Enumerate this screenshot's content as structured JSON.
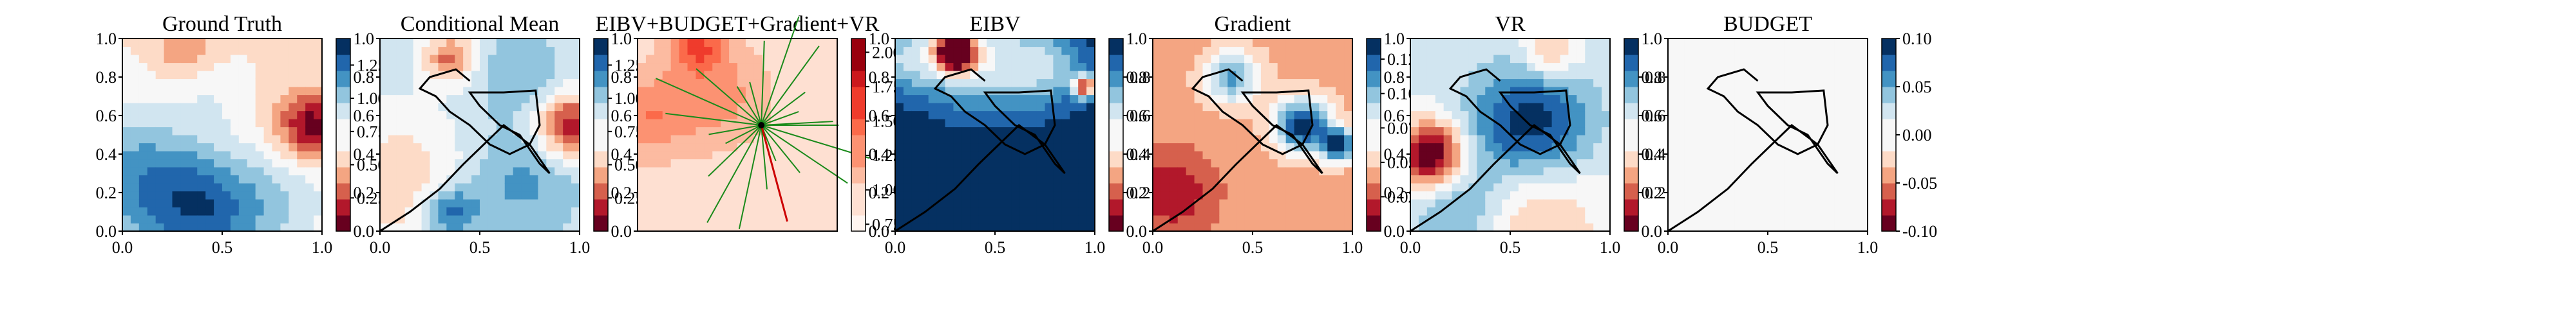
{
  "chart_data": [
    {
      "type": "heatmap",
      "title": "Ground Truth",
      "xlim": [
        0,
        1
      ],
      "ylim": [
        0,
        1
      ],
      "xticks": [
        "0.0",
        "0.5",
        "1.0"
      ],
      "yticks": [
        "0.0",
        "0.2",
        "0.4",
        "0.6",
        "0.8",
        "1.0"
      ],
      "colorbar": {
        "range": [
          0.0,
          1.45
        ],
        "ticks": [
          "0.25",
          "0.50",
          "0.75",
          "1.00",
          "1.25"
        ],
        "cmap": "RdBu"
      },
      "field": {
        "base": 0.65,
        "blobs": [
          {
            "x": 0.95,
            "y": 0.55,
            "s": 0.12,
            "a": -0.6
          },
          {
            "x": 0.3,
            "y": 0.95,
            "s": 0.1,
            "a": -0.25
          },
          {
            "x": 0.45,
            "y": 0.7,
            "s": 0.12,
            "a": 0.1
          },
          {
            "x": 0.4,
            "y": 0.1,
            "s": 0.22,
            "a": 0.55
          },
          {
            "x": 0.05,
            "y": 0.3,
            "s": 0.25,
            "a": 0.4
          },
          {
            "x": 0.8,
            "y": 0.15,
            "s": 0.2,
            "a": 0.2
          }
        ]
      },
      "path": []
    },
    {
      "type": "heatmap",
      "title": "Conditional Mean",
      "xlim": [
        0,
        1
      ],
      "ylim": [
        0,
        1
      ],
      "xticks": [
        "0.0",
        "0.5",
        "1.0"
      ],
      "yticks": [
        "0.0",
        "0.2",
        "0.4",
        "0.6",
        "0.8",
        "1.0"
      ],
      "colorbar": {
        "range": [
          0.0,
          1.45
        ],
        "ticks": [
          "0.25",
          "0.50",
          "0.75",
          "1.00",
          "1.25"
        ],
        "cmap": "RdBu"
      },
      "field": {
        "base": 0.85,
        "blobs": [
          {
            "x": 0.95,
            "y": 0.55,
            "s": 0.12,
            "a": -0.7
          },
          {
            "x": 0.35,
            "y": 0.9,
            "s": 0.09,
            "a": -0.5
          },
          {
            "x": 0.1,
            "y": 0.25,
            "s": 0.25,
            "a": -0.3
          },
          {
            "x": 0.35,
            "y": 0.1,
            "s": 0.1,
            "a": 0.45
          },
          {
            "x": 0.7,
            "y": 0.25,
            "s": 0.2,
            "a": 0.25
          },
          {
            "x": 0.7,
            "y": 0.8,
            "s": 0.15,
            "a": 0.2
          }
        ]
      },
      "path": [
        [
          0.0,
          0.0
        ],
        [
          0.15,
          0.1
        ],
        [
          0.3,
          0.22
        ],
        [
          0.42,
          0.35
        ],
        [
          0.52,
          0.45
        ],
        [
          0.62,
          0.55
        ],
        [
          0.75,
          0.45
        ],
        [
          0.85,
          0.3
        ],
        [
          0.8,
          0.35
        ],
        [
          0.7,
          0.5
        ],
        [
          0.6,
          0.55
        ],
        [
          0.5,
          0.65
        ],
        [
          0.45,
          0.72
        ],
        [
          0.62,
          0.72
        ],
        [
          0.78,
          0.73
        ],
        [
          0.8,
          0.55
        ],
        [
          0.75,
          0.45
        ],
        [
          0.65,
          0.4
        ],
        [
          0.55,
          0.45
        ],
        [
          0.45,
          0.55
        ],
        [
          0.35,
          0.62
        ],
        [
          0.28,
          0.7
        ],
        [
          0.2,
          0.74
        ],
        [
          0.25,
          0.8
        ],
        [
          0.38,
          0.84
        ],
        [
          0.45,
          0.78
        ]
      ]
    },
    {
      "type": "heatmap",
      "title": "EIBV+BUDGET+Gradient+VR",
      "xlim": [
        0,
        1
      ],
      "ylim": [
        0,
        1
      ],
      "xticks": [],
      "yticks": [
        "0.0",
        "0.2",
        "0.4",
        "0.6",
        "0.8",
        "1.0"
      ],
      "colorbar": {
        "range": [
          0.7,
          2.1
        ],
        "ticks": [
          "0.75",
          "1.00",
          "1.25",
          "1.50",
          "1.75",
          "2.00"
        ],
        "cmap": "Reds"
      },
      "field": {
        "base": 0.95,
        "blobs": [
          {
            "x": 0.05,
            "y": 0.6,
            "s": 0.15,
            "a": 0.4
          },
          {
            "x": 0.4,
            "y": 0.7,
            "s": 0.18,
            "a": 0.35
          },
          {
            "x": 0.3,
            "y": 0.97,
            "s": 0.1,
            "a": 0.6
          }
        ]
      },
      "path": []
    },
    {
      "type": "heatmap",
      "title": "EIBV",
      "xlim": [
        0,
        1
      ],
      "ylim": [
        0,
        1
      ],
      "xticks": [
        "0.0",
        "0.5",
        "1.0"
      ],
      "yticks": [
        "0.0",
        "0.2",
        "0.4",
        "0.6",
        "0.8",
        "1.0"
      ],
      "colorbar": {
        "range": [
          0.0,
          1.0
        ],
        "ticks": [
          "0.2",
          "0.4",
          "0.6",
          "0.8"
        ],
        "cmap": "RdBu"
      },
      "field": {
        "base": 0.98,
        "blobs": [
          {
            "x": 0.3,
            "y": 0.93,
            "s": 0.07,
            "a": -0.95
          },
          {
            "x": 0.95,
            "y": 0.75,
            "s": 0.04,
            "a": -0.8
          },
          {
            "x": 0.4,
            "y": 0.9,
            "s": 0.2,
            "a": -0.4
          },
          {
            "x": 0.05,
            "y": 0.9,
            "s": 0.12,
            "a": -0.3
          },
          {
            "x": 0.75,
            "y": 0.85,
            "s": 0.15,
            "a": -0.3
          }
        ]
      },
      "path": [
        [
          0.0,
          0.0
        ],
        [
          0.15,
          0.1
        ],
        [
          0.3,
          0.22
        ],
        [
          0.42,
          0.35
        ],
        [
          0.52,
          0.45
        ],
        [
          0.62,
          0.55
        ],
        [
          0.75,
          0.45
        ],
        [
          0.85,
          0.3
        ],
        [
          0.8,
          0.35
        ],
        [
          0.7,
          0.5
        ],
        [
          0.6,
          0.55
        ],
        [
          0.5,
          0.65
        ],
        [
          0.45,
          0.72
        ],
        [
          0.62,
          0.72
        ],
        [
          0.78,
          0.73
        ],
        [
          0.8,
          0.55
        ],
        [
          0.75,
          0.45
        ],
        [
          0.65,
          0.4
        ],
        [
          0.55,
          0.45
        ],
        [
          0.45,
          0.55
        ],
        [
          0.35,
          0.62
        ],
        [
          0.28,
          0.7
        ],
        [
          0.2,
          0.74
        ],
        [
          0.25,
          0.8
        ],
        [
          0.38,
          0.84
        ],
        [
          0.45,
          0.78
        ]
      ]
    },
    {
      "type": "heatmap",
      "title": "Gradient",
      "xlim": [
        0,
        1
      ],
      "ylim": [
        0,
        1
      ],
      "xticks": [
        "0.0",
        "0.5",
        "1.0"
      ],
      "yticks": [
        "0.0",
        "0.2",
        "0.4",
        "0.6",
        "0.8",
        "1.0"
      ],
      "colorbar": {
        "range": [
          0.0,
          0.14
        ],
        "ticks": [
          "0.025",
          "0.050",
          "0.075",
          "0.100",
          "0.125"
        ],
        "cmap": "RdBu"
      },
      "field": {
        "base": 0.045,
        "blobs": [
          {
            "x": 0.75,
            "y": 0.55,
            "s": 0.1,
            "a": 0.09
          },
          {
            "x": 0.4,
            "y": 0.8,
            "s": 0.1,
            "a": 0.06
          },
          {
            "x": 0.93,
            "y": 0.45,
            "s": 0.06,
            "a": 0.09
          },
          {
            "x": 0.1,
            "y": 0.2,
            "s": 0.15,
            "a": -0.03
          }
        ]
      },
      "path": [
        [
          0.0,
          0.0
        ],
        [
          0.15,
          0.1
        ],
        [
          0.3,
          0.22
        ],
        [
          0.42,
          0.35
        ],
        [
          0.52,
          0.45
        ],
        [
          0.62,
          0.55
        ],
        [
          0.75,
          0.45
        ],
        [
          0.85,
          0.3
        ],
        [
          0.8,
          0.35
        ],
        [
          0.7,
          0.5
        ],
        [
          0.6,
          0.55
        ],
        [
          0.5,
          0.65
        ],
        [
          0.45,
          0.72
        ],
        [
          0.62,
          0.72
        ],
        [
          0.78,
          0.73
        ],
        [
          0.8,
          0.55
        ],
        [
          0.75,
          0.45
        ],
        [
          0.65,
          0.4
        ],
        [
          0.55,
          0.45
        ],
        [
          0.45,
          0.55
        ],
        [
          0.35,
          0.62
        ],
        [
          0.28,
          0.7
        ],
        [
          0.2,
          0.74
        ],
        [
          0.25,
          0.8
        ],
        [
          0.38,
          0.84
        ],
        [
          0.45,
          0.78
        ]
      ]
    },
    {
      "type": "heatmap",
      "title": "VR",
      "xlim": [
        0,
        1
      ],
      "ylim": [
        0,
        1
      ],
      "xticks": [
        "0.0",
        "0.5",
        "1.0"
      ],
      "yticks": [
        "0.0",
        "0.2",
        "0.4",
        "0.6",
        "0.8",
        "1.0"
      ],
      "colorbar": {
        "range": [
          0.0,
          1.0
        ],
        "ticks": [
          "0.2",
          "0.4",
          "0.6",
          "0.8"
        ],
        "cmap": "RdBu"
      },
      "field": {
        "base": 0.55,
        "blobs": [
          {
            "x": 0.1,
            "y": 0.4,
            "s": 0.12,
            "a": -0.6
          },
          {
            "x": 0.55,
            "y": 0.1,
            "s": 0.25,
            "a": -0.3
          },
          {
            "x": 0.7,
            "y": 0.92,
            "s": 0.1,
            "a": -0.25
          },
          {
            "x": 0.6,
            "y": 0.55,
            "s": 0.22,
            "a": 0.45
          },
          {
            "x": 0.3,
            "y": 0.1,
            "s": 0.2,
            "a": 0.3
          }
        ]
      },
      "path": [
        [
          0.0,
          0.0
        ],
        [
          0.15,
          0.1
        ],
        [
          0.3,
          0.22
        ],
        [
          0.42,
          0.35
        ],
        [
          0.52,
          0.45
        ],
        [
          0.62,
          0.55
        ],
        [
          0.75,
          0.45
        ],
        [
          0.85,
          0.3
        ],
        [
          0.8,
          0.35
        ],
        [
          0.7,
          0.5
        ],
        [
          0.6,
          0.55
        ],
        [
          0.5,
          0.65
        ],
        [
          0.45,
          0.72
        ],
        [
          0.62,
          0.72
        ],
        [
          0.78,
          0.73
        ],
        [
          0.8,
          0.55
        ],
        [
          0.75,
          0.45
        ],
        [
          0.65,
          0.4
        ],
        [
          0.55,
          0.45
        ],
        [
          0.45,
          0.55
        ],
        [
          0.35,
          0.62
        ],
        [
          0.28,
          0.7
        ],
        [
          0.2,
          0.74
        ],
        [
          0.25,
          0.8
        ],
        [
          0.38,
          0.84
        ],
        [
          0.45,
          0.78
        ]
      ]
    },
    {
      "type": "heatmap",
      "title": "BUDGET",
      "xlim": [
        0,
        1
      ],
      "ylim": [
        0,
        1
      ],
      "xticks": [
        "0.0",
        "0.5",
        "1.0"
      ],
      "yticks": [
        "0.0",
        "0.2",
        "0.4",
        "0.6",
        "0.8",
        "1.0"
      ],
      "colorbar": {
        "range": [
          -0.1,
          0.1
        ],
        "ticks": [
          "-0.10",
          "-0.05",
          "0.00",
          "0.05",
          "0.10"
        ],
        "cmap": "RdBu"
      },
      "field": {
        "base": 0.0,
        "blobs": []
      },
      "path": [
        [
          0.0,
          0.0
        ],
        [
          0.15,
          0.1
        ],
        [
          0.3,
          0.22
        ],
        [
          0.42,
          0.35
        ],
        [
          0.52,
          0.45
        ],
        [
          0.62,
          0.55
        ],
        [
          0.75,
          0.45
        ],
        [
          0.85,
          0.3
        ],
        [
          0.8,
          0.35
        ],
        [
          0.7,
          0.5
        ],
        [
          0.6,
          0.55
        ],
        [
          0.5,
          0.65
        ],
        [
          0.45,
          0.72
        ],
        [
          0.62,
          0.72
        ],
        [
          0.78,
          0.73
        ],
        [
          0.8,
          0.55
        ],
        [
          0.75,
          0.45
        ],
        [
          0.65,
          0.4
        ],
        [
          0.55,
          0.45
        ],
        [
          0.45,
          0.55
        ],
        [
          0.35,
          0.62
        ],
        [
          0.28,
          0.7
        ],
        [
          0.2,
          0.74
        ],
        [
          0.25,
          0.8
        ],
        [
          0.38,
          0.84
        ],
        [
          0.45,
          0.78
        ]
      ]
    }
  ]
}
